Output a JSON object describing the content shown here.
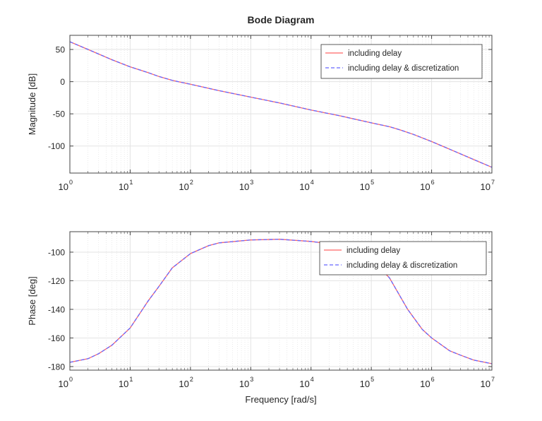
{
  "chart_data": [
    {
      "type": "line",
      "title": "Bode Diagram",
      "xlabel": "",
      "ylabel": "Magnitude [dB]",
      "xscale": "log",
      "xlim": [
        1,
        10000000
      ],
      "ylim": [
        -142,
        72
      ],
      "grid": true,
      "legend_placement": "top-right",
      "x_ticks": [
        1,
        10,
        100,
        1000,
        10000,
        100000,
        1000000,
        10000000
      ],
      "x_tick_labels": [
        "0",
        "1",
        "2",
        "3",
        "4",
        "5",
        "6",
        "7"
      ],
      "x_tick_base": "10",
      "y_ticks": [
        50,
        0,
        -50,
        -100
      ],
      "y_tick_labels": [
        "50",
        "0",
        "-50",
        "-100"
      ],
      "x": [
        1,
        2,
        5,
        10,
        20,
        30,
        50,
        100,
        300,
        1000,
        3000,
        10000,
        30000,
        100000,
        200000,
        300000,
        500000,
        1000000,
        2000000,
        5000000,
        10000000
      ],
      "series": [
        {
          "name": "including delay",
          "color": "#ff6666",
          "style": "solid",
          "values": [
            62,
            50,
            34,
            23,
            14,
            8,
            2,
            -4,
            -14,
            -24,
            -33,
            -44,
            -53,
            -64,
            -70,
            -75,
            -82,
            -93,
            -105,
            -121,
            -133
          ]
        },
        {
          "name": "including delay & discretization",
          "color": "#6666ff",
          "style": "dashed",
          "values": [
            62,
            50,
            34,
            23,
            14,
            8,
            2,
            -4,
            -14,
            -24,
            -33,
            -44,
            -53,
            -64,
            -70,
            -75,
            -82,
            -93,
            -105,
            -121,
            -133
          ]
        }
      ]
    },
    {
      "type": "line",
      "title": "",
      "xlabel": "Frequency [rad/s]",
      "ylabel": "Phase [deg]",
      "xscale": "log",
      "xlim": [
        1,
        10000000
      ],
      "ylim": [
        -182.5,
        -85.7
      ],
      "grid": true,
      "legend_placement": "top-right",
      "x_ticks": [
        1,
        10,
        100,
        1000,
        10000,
        100000,
        1000000,
        10000000
      ],
      "x_tick_labels": [
        "0",
        "1",
        "2",
        "3",
        "4",
        "5",
        "6",
        "7"
      ],
      "x_tick_base": "10",
      "y_ticks": [
        -100,
        -120,
        -140,
        -160,
        -180
      ],
      "y_tick_labels": [
        "-100",
        "-120",
        "-140",
        "-160",
        "-180"
      ],
      "x": [
        1,
        2,
        3,
        5,
        10,
        20,
        30,
        50,
        100,
        200,
        300,
        1000,
        3000,
        10000,
        30000,
        60000,
        100000,
        200000,
        400000,
        700000,
        1000000,
        2000000,
        3000000,
        5000000,
        10000000
      ],
      "series": [
        {
          "name": "including delay",
          "color": "#ff6666",
          "style": "solid",
          "values": [
            -177,
            -174.5,
            -171,
            -165,
            -153,
            -134,
            -124,
            -111,
            -101,
            -95.5,
            -93.5,
            -91.5,
            -91,
            -92.5,
            -95,
            -99,
            -105,
            -118,
            -140,
            -154,
            -160,
            -169,
            -172,
            -175.5,
            -178
          ]
        },
        {
          "name": "including delay & discretization",
          "color": "#6666ff",
          "style": "dashed",
          "values": [
            -177,
            -174.5,
            -171,
            -165,
            -153,
            -134,
            -124,
            -111,
            -101,
            -95.5,
            -93.5,
            -91.5,
            -91,
            -92.5,
            -95,
            -99,
            -105,
            -118,
            -140,
            -154,
            -160,
            -169,
            -172,
            -175.5,
            -178
          ]
        }
      ]
    }
  ]
}
